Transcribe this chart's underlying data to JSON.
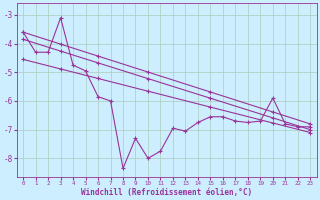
{
  "xlabel": "Windchill (Refroidissement éolien,°C)",
  "bg_color": "#cceeff",
  "grid_color": "#aaccbb",
  "line_color": "#993399",
  "xlim": [
    -0.5,
    23.5
  ],
  "ylim": [
    -8.65,
    -2.6
  ],
  "yticks": [
    -3,
    -4,
    -5,
    -6,
    -7,
    -8
  ],
  "xticks": [
    0,
    1,
    2,
    3,
    4,
    5,
    6,
    7,
    8,
    9,
    10,
    11,
    12,
    13,
    14,
    15,
    16,
    17,
    18,
    19,
    20,
    21,
    22,
    23
  ],
  "zigzag": {
    "x": [
      0,
      1,
      2,
      3,
      4,
      5,
      6,
      7,
      8,
      9,
      10,
      11,
      12,
      13,
      14,
      15,
      16,
      17,
      18,
      19,
      20,
      21,
      22,
      23
    ],
    "y": [
      -3.6,
      -4.3,
      -4.3,
      -3.1,
      -4.75,
      -4.95,
      -5.85,
      -6.0,
      -8.35,
      -7.3,
      -8.0,
      -7.75,
      -6.95,
      -7.05,
      -6.75,
      -6.55,
      -6.55,
      -6.7,
      -6.75,
      -6.7,
      -5.9,
      -6.8,
      -6.9,
      -6.9
    ]
  },
  "line1": {
    "x": [
      0,
      23
    ],
    "y": [
      -3.6,
      -6.8
    ]
  },
  "line2": {
    "x": [
      0,
      23
    ],
    "y": [
      -3.85,
      -7.0
    ]
  },
  "line3": {
    "x": [
      0,
      23
    ],
    "y": [
      -4.55,
      -7.1
    ]
  },
  "marker_line1": {
    "x": [
      0,
      3,
      6,
      10,
      15,
      20,
      23
    ],
    "y": [
      -3.6,
      -4.015,
      -4.43,
      -5.0,
      -5.7,
      -6.35,
      -6.8
    ]
  },
  "marker_line2": {
    "x": [
      0,
      3,
      6,
      10,
      15,
      20,
      23
    ],
    "y": [
      -3.85,
      -4.26,
      -4.67,
      -5.24,
      -5.94,
      -6.62,
      -7.0
    ]
  },
  "marker_line3": {
    "x": [
      0,
      3,
      6,
      10,
      15,
      20,
      23
    ],
    "y": [
      -4.55,
      -4.81,
      -5.07,
      -5.46,
      -5.98,
      -6.5,
      -7.1
    ]
  }
}
